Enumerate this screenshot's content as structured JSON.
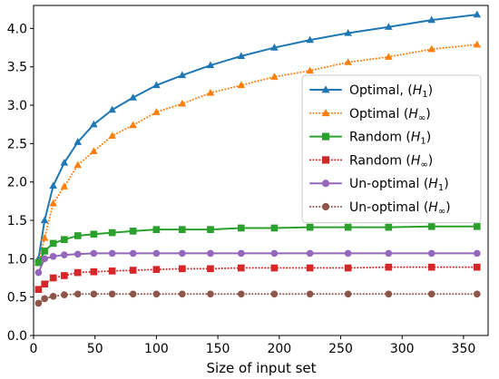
{
  "chart_data": {
    "type": "line",
    "title": "",
    "xlabel": "Size of input set",
    "ylabel": "",
    "xlim": [
      0,
      370
    ],
    "ylim": [
      0.0,
      4.3
    ],
    "xticks": [
      0,
      50,
      100,
      150,
      200,
      250,
      300,
      350
    ],
    "yticks": [
      0.0,
      0.5,
      1.0,
      1.5,
      2.0,
      2.5,
      3.0,
      3.5,
      4.0
    ],
    "ytick_labels": [
      "0.0",
      "0.5",
      "1.0",
      "1.5",
      "2.0",
      "2.5",
      "3.0",
      "3.5",
      "4.0"
    ],
    "grid": false,
    "legend_position": "center-right",
    "x": [
      4,
      9,
      16,
      25,
      36,
      49,
      64,
      81,
      100,
      121,
      144,
      169,
      196,
      225,
      256,
      289,
      324,
      361
    ],
    "series": [
      {
        "name": "Optimal, (H₁)",
        "style": "solid",
        "marker": "triangle",
        "color": "#1f77b4",
        "values": [
          1.0,
          1.5,
          1.95,
          2.25,
          2.52,
          2.75,
          2.94,
          3.1,
          3.26,
          3.39,
          3.52,
          3.64,
          3.75,
          3.85,
          3.94,
          4.02,
          4.11,
          4.18
        ]
      },
      {
        "name": "Optimal (H∞)",
        "style": "dotted",
        "marker": "triangle",
        "color": "#ff7f0e",
        "values": [
          0.95,
          1.27,
          1.72,
          1.94,
          2.22,
          2.4,
          2.6,
          2.74,
          2.91,
          3.02,
          3.16,
          3.26,
          3.37,
          3.45,
          3.56,
          3.63,
          3.73,
          3.79
        ]
      },
      {
        "name": "Random (H₁)",
        "style": "solid",
        "marker": "square",
        "color": "#2ca02c",
        "values": [
          0.95,
          1.1,
          1.2,
          1.25,
          1.3,
          1.32,
          1.34,
          1.36,
          1.38,
          1.38,
          1.38,
          1.4,
          1.4,
          1.41,
          1.41,
          1.41,
          1.42,
          1.42
        ]
      },
      {
        "name": "Random (H∞)",
        "style": "dotted",
        "marker": "square",
        "color": "#d62728",
        "values": [
          0.6,
          0.67,
          0.75,
          0.78,
          0.82,
          0.83,
          0.84,
          0.85,
          0.86,
          0.87,
          0.87,
          0.88,
          0.88,
          0.88,
          0.88,
          0.89,
          0.89,
          0.89
        ]
      },
      {
        "name": "Un-optimal (H₁)",
        "style": "solid",
        "marker": "circle",
        "color": "#9467bd",
        "values": [
          0.82,
          1.0,
          1.03,
          1.05,
          1.06,
          1.07,
          1.07,
          1.07,
          1.07,
          1.07,
          1.07,
          1.07,
          1.07,
          1.07,
          1.07,
          1.07,
          1.07,
          1.07
        ]
      },
      {
        "name": "Un-optimal (H∞)",
        "style": "dotted",
        "marker": "circle",
        "color": "#8c564b",
        "values": [
          0.42,
          0.48,
          0.51,
          0.53,
          0.54,
          0.54,
          0.54,
          0.54,
          0.54,
          0.54,
          0.54,
          0.54,
          0.54,
          0.54,
          0.54,
          0.54,
          0.54,
          0.54
        ]
      }
    ]
  }
}
